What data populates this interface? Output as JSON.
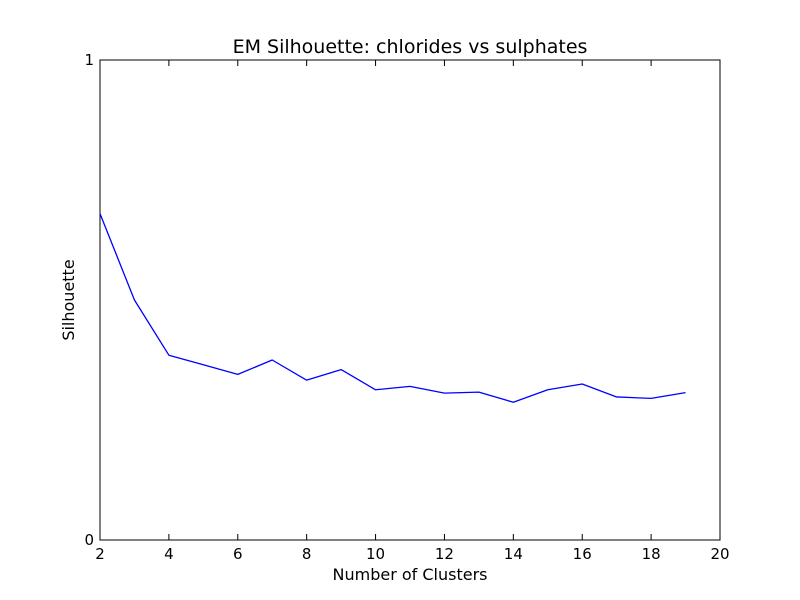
{
  "chart_data": {
    "type": "line",
    "title": "EM Silhouette: chlorides vs sulphates",
    "xlabel": "Number of Clusters",
    "ylabel": "Silhouette",
    "xlim": [
      2,
      20
    ],
    "ylim": [
      0,
      1
    ],
    "xticks": [
      2,
      4,
      6,
      8,
      10,
      12,
      14,
      16,
      18,
      20
    ],
    "yticks": [
      0,
      1
    ],
    "grid": false,
    "legend": "none",
    "series": [
      {
        "color": "#0000ff",
        "x": [
          2,
          3,
          4,
          5,
          6,
          7,
          8,
          9,
          10,
          11,
          12,
          13,
          14,
          15,
          16,
          17,
          18,
          19
        ],
        "y": [
          0.68,
          0.5,
          0.385,
          0.365,
          0.345,
          0.375,
          0.333,
          0.355,
          0.313,
          0.32,
          0.306,
          0.308,
          0.287,
          0.313,
          0.325,
          0.298,
          0.295,
          0.307
        ]
      }
    ]
  }
}
